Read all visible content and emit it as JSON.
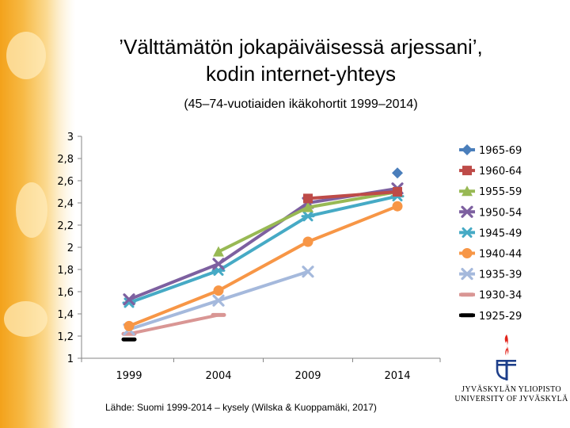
{
  "title_line1": "’Välttämätön jokapäiväisessä arjessani’,",
  "title_line2": "kodin internet-yhteys",
  "subtitle": "(45–74-vuotiaiden ikäkohortit 1999–2014)",
  "source": "Lähde: Suomi 1999-2014 – kysely (Wilska & Kuoppamäki, 2017)",
  "university": {
    "line1": "JYVÄSKYLÄN YLIOPISTO",
    "line2": "UNIVERSITY OF JYVÄSKYLÄ"
  },
  "chart_data": {
    "type": "line",
    "x": [
      1999,
      2004,
      2009,
      2014
    ],
    "xticks": [
      "1999",
      "2004",
      "2009",
      "2014"
    ],
    "ylim": [
      1,
      3
    ],
    "yticks": [
      "1",
      "1,2",
      "1,4",
      "1,6",
      "1,8",
      "2",
      "2,2",
      "2,4",
      "2,6",
      "2,8",
      "3"
    ],
    "legend_position": "right",
    "series": [
      {
        "name": "1965-69",
        "color": "#4a7ebb",
        "marker": "diamond",
        "values": [
          null,
          null,
          null,
          2.67
        ]
      },
      {
        "name": "1960-64",
        "color": "#be4b48",
        "marker": "square",
        "values": [
          null,
          null,
          2.44,
          2.5
        ]
      },
      {
        "name": "1955-59",
        "color": "#98b954",
        "marker": "triangle",
        "values": [
          null,
          1.96,
          2.36,
          2.5
        ]
      },
      {
        "name": "1950-54",
        "color": "#7d60a0",
        "marker": "x",
        "values": [
          1.53,
          1.85,
          2.4,
          2.53
        ]
      },
      {
        "name": "1945-49",
        "color": "#46aac5",
        "marker": "star",
        "values": [
          1.5,
          1.79,
          2.28,
          2.46
        ]
      },
      {
        "name": "1940-44",
        "color": "#f79646",
        "marker": "circle",
        "values": [
          1.29,
          1.61,
          2.05,
          2.37
        ]
      },
      {
        "name": "1935-39",
        "color": "#a5b9dc",
        "marker": "x",
        "values": [
          1.26,
          1.52,
          1.78,
          null
        ]
      },
      {
        "name": "1930-34",
        "color": "#d99694",
        "marker": "dash",
        "values": [
          1.22,
          1.39,
          null,
          null
        ]
      },
      {
        "name": "1925-29",
        "color": "#000000",
        "marker": "dash",
        "values": [
          1.17,
          null,
          null,
          null
        ]
      }
    ]
  }
}
